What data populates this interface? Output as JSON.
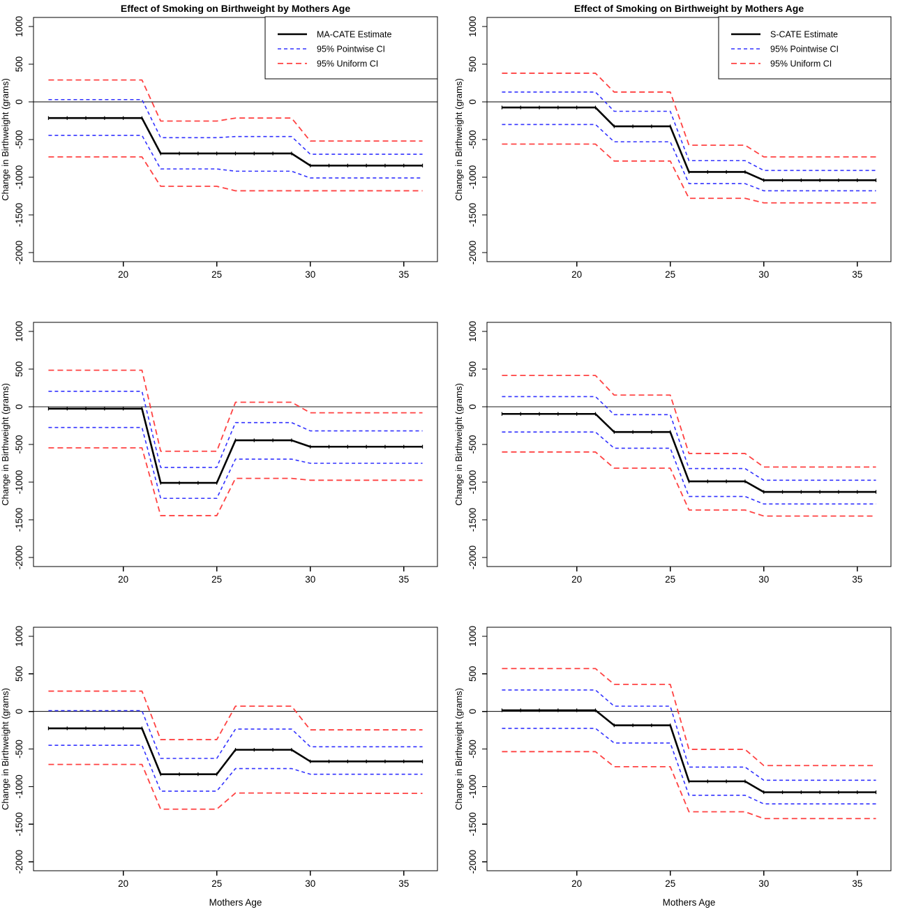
{
  "figure": {
    "ylabel": "Change in Birthweight (grams)",
    "xlabel": "Mothers Age",
    "x_ticks": [
      20,
      25,
      30,
      35
    ],
    "y_ticks": [
      -2000,
      -1500,
      -1000,
      -500,
      0,
      500,
      1000
    ],
    "xlim": [
      15.2,
      36.8
    ],
    "ylim": [
      -2120,
      1120
    ],
    "age_segments": [
      [
        16,
        21
      ],
      [
        22,
        25
      ],
      [
        26,
        29
      ],
      [
        30,
        36
      ]
    ],
    "marker_ages": [
      16,
      17,
      18,
      19,
      20,
      21,
      22,
      23,
      24,
      25,
      26,
      27,
      28,
      29,
      30,
      31,
      32,
      33,
      34,
      35,
      36
    ],
    "colors": {
      "estimate": "#000000",
      "pointwise": "#3232FF",
      "uniform": "#FF4242",
      "zero_row_top_bottom": "#000000",
      "zero_row_middle": "#8C8C8C"
    },
    "legend_labels": {
      "pointwise": "95% Pointwise CI",
      "uniform": "95% Uniform CI"
    }
  },
  "chart_data": [
    {
      "type": "line",
      "position": "top-left",
      "title": "Effect of Smoking on Birthweight by Mothers Age",
      "show_title": true,
      "show_legend": true,
      "show_xlabel": false,
      "estimate_label": "MA-CATE Estimate",
      "legend": [
        "MA-CATE Estimate",
        "95% Pointwise CI",
        "95% Uniform CI"
      ],
      "zero_line": {
        "color": "#000000",
        "width": 1
      },
      "x_segments": [
        [
          16,
          21
        ],
        [
          22,
          25
        ],
        [
          26,
          29
        ],
        [
          30,
          36
        ]
      ],
      "series": {
        "estimate": [
          -215,
          -685,
          -685,
          -845
        ],
        "pointwise_upper": [
          30,
          -475,
          -460,
          -695
        ],
        "pointwise_lower": [
          -445,
          -890,
          -920,
          -1010
        ],
        "uniform_upper": [
          290,
          -255,
          -215,
          -520
        ],
        "uniform_lower": [
          -730,
          -1120,
          -1180,
          -1180
        ]
      }
    },
    {
      "type": "line",
      "position": "top-right",
      "title": "Effect of Smoking on Birthweight by Mothers Age",
      "show_title": true,
      "show_legend": true,
      "show_xlabel": false,
      "estimate_label": "S-CATE Estimate",
      "legend": [
        "S-CATE Estimate",
        "95% Pointwise CI",
        "95% Uniform CI"
      ],
      "zero_line": {
        "color": "#000000",
        "width": 1
      },
      "x_segments": [
        [
          16,
          21
        ],
        [
          22,
          25
        ],
        [
          26,
          29
        ],
        [
          30,
          36
        ]
      ],
      "series": {
        "estimate": [
          -75,
          -325,
          -930,
          -1040
        ],
        "pointwise_upper": [
          130,
          -125,
          -780,
          -910
        ],
        "pointwise_lower": [
          -300,
          -530,
          -1085,
          -1180
        ],
        "uniform_upper": [
          380,
          130,
          -575,
          -730
        ],
        "uniform_lower": [
          -560,
          -785,
          -1280,
          -1340
        ]
      }
    },
    {
      "type": "line",
      "position": "middle-left",
      "title": "",
      "show_title": false,
      "show_legend": false,
      "show_xlabel": false,
      "estimate_label": "MA-CATE Estimate",
      "legend": null,
      "zero_line": {
        "color": "#8C8C8C",
        "width": 2
      },
      "x_segments": [
        [
          16,
          21
        ],
        [
          22,
          25
        ],
        [
          26,
          29
        ],
        [
          30,
          36
        ]
      ],
      "series": {
        "estimate": [
          -25,
          -1010,
          -445,
          -530
        ],
        "pointwise_upper": [
          205,
          -805,
          -210,
          -320
        ],
        "pointwise_lower": [
          -275,
          -1215,
          -695,
          -750
        ],
        "uniform_upper": [
          485,
          -590,
          60,
          -80
        ],
        "uniform_lower": [
          -545,
          -1445,
          -950,
          -975
        ]
      }
    },
    {
      "type": "line",
      "position": "middle-right",
      "title": "",
      "show_title": false,
      "show_legend": false,
      "show_xlabel": false,
      "estimate_label": "S-CATE Estimate",
      "legend": null,
      "zero_line": {
        "color": "#8C8C8C",
        "width": 2
      },
      "x_segments": [
        [
          16,
          21
        ],
        [
          22,
          25
        ],
        [
          26,
          29
        ],
        [
          30,
          36
        ]
      ],
      "series": {
        "estimate": [
          -95,
          -335,
          -990,
          -1130
        ],
        "pointwise_upper": [
          135,
          -105,
          -820,
          -975
        ],
        "pointwise_lower": [
          -335,
          -550,
          -1190,
          -1290
        ],
        "uniform_upper": [
          415,
          155,
          -620,
          -800
        ],
        "uniform_lower": [
          -600,
          -815,
          -1370,
          -1450
        ]
      }
    },
    {
      "type": "line",
      "position": "bottom-left",
      "title": "",
      "show_title": false,
      "show_legend": false,
      "show_xlabel": true,
      "estimate_label": "MA-CATE Estimate",
      "legend": null,
      "zero_line": {
        "color": "#000000",
        "width": 1
      },
      "x_segments": [
        [
          16,
          21
        ],
        [
          22,
          25
        ],
        [
          26,
          29
        ],
        [
          30,
          36
        ]
      ],
      "series": {
        "estimate": [
          -225,
          -835,
          -510,
          -665
        ],
        "pointwise_upper": [
          10,
          -625,
          -235,
          -470
        ],
        "pointwise_lower": [
          -450,
          -1060,
          -760,
          -835
        ],
        "uniform_upper": [
          270,
          -375,
          70,
          -245
        ],
        "uniform_lower": [
          -705,
          -1300,
          -1085,
          -1090
        ]
      }
    },
    {
      "type": "line",
      "position": "bottom-right",
      "title": "",
      "show_title": false,
      "show_legend": false,
      "show_xlabel": true,
      "estimate_label": "S-CATE Estimate",
      "legend": null,
      "zero_line": {
        "color": "#000000",
        "width": 1
      },
      "x_segments": [
        [
          16,
          21
        ],
        [
          22,
          25
        ],
        [
          26,
          29
        ],
        [
          30,
          36
        ]
      ],
      "series": {
        "estimate": [
          15,
          -185,
          -930,
          -1075
        ],
        "pointwise_upper": [
          285,
          70,
          -740,
          -915
        ],
        "pointwise_lower": [
          -225,
          -420,
          -1115,
          -1230
        ],
        "uniform_upper": [
          570,
          360,
          -505,
          -720
        ],
        "uniform_lower": [
          -535,
          -735,
          -1335,
          -1425
        ]
      }
    }
  ]
}
